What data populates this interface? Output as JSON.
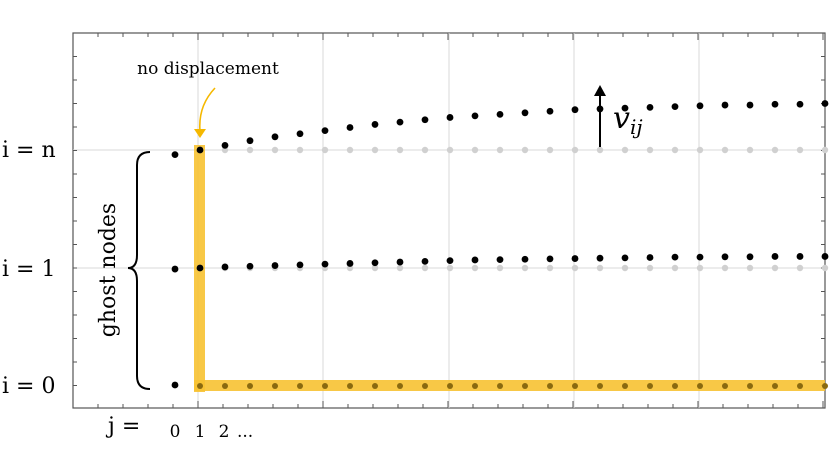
{
  "annotation": {
    "no_displacement": "no displacement",
    "arrow_color": "#f5b800"
  },
  "labels": {
    "row_n": "i = n",
    "row_1": "i = 1",
    "row_0": "i = 0",
    "ghost_nodes": "ghost nodes",
    "j_prefix": "j =",
    "j_0": "0",
    "j_1": "1",
    "j_2": "2",
    "j_more": "...",
    "displacement": "v",
    "displacement_sub": "ij"
  },
  "colors": {
    "boundary": "#f7c232",
    "grid": "#d9d9d9",
    "frame": "#555555",
    "node_gray": "#d0d0d0",
    "node_black": "#000000"
  },
  "chart_data": {
    "type": "scatter",
    "columns": 26,
    "series": [
      {
        "row": "n",
        "values": [
          0.94,
          1.0,
          1.06,
          1.12,
          1.17,
          1.21,
          1.25,
          1.29,
          1.33,
          1.36,
          1.39,
          1.42,
          1.44,
          1.46,
          1.48,
          1.5,
          1.52,
          1.53,
          1.54,
          1.55,
          1.56,
          1.57,
          1.58,
          1.58,
          1.59,
          1.59,
          1.6
        ]
      },
      {
        "row": "1",
        "values": [
          0.97,
          1.0,
          1.03,
          1.05,
          1.07,
          1.09,
          1.11,
          1.13,
          1.15,
          1.17,
          1.19,
          1.21,
          1.23,
          1.24,
          1.25,
          1.26,
          1.27,
          1.28,
          1.29,
          1.3,
          1.31,
          1.31,
          1.32,
          1.32,
          1.33,
          1.33,
          1.33
        ]
      }
    ]
  }
}
